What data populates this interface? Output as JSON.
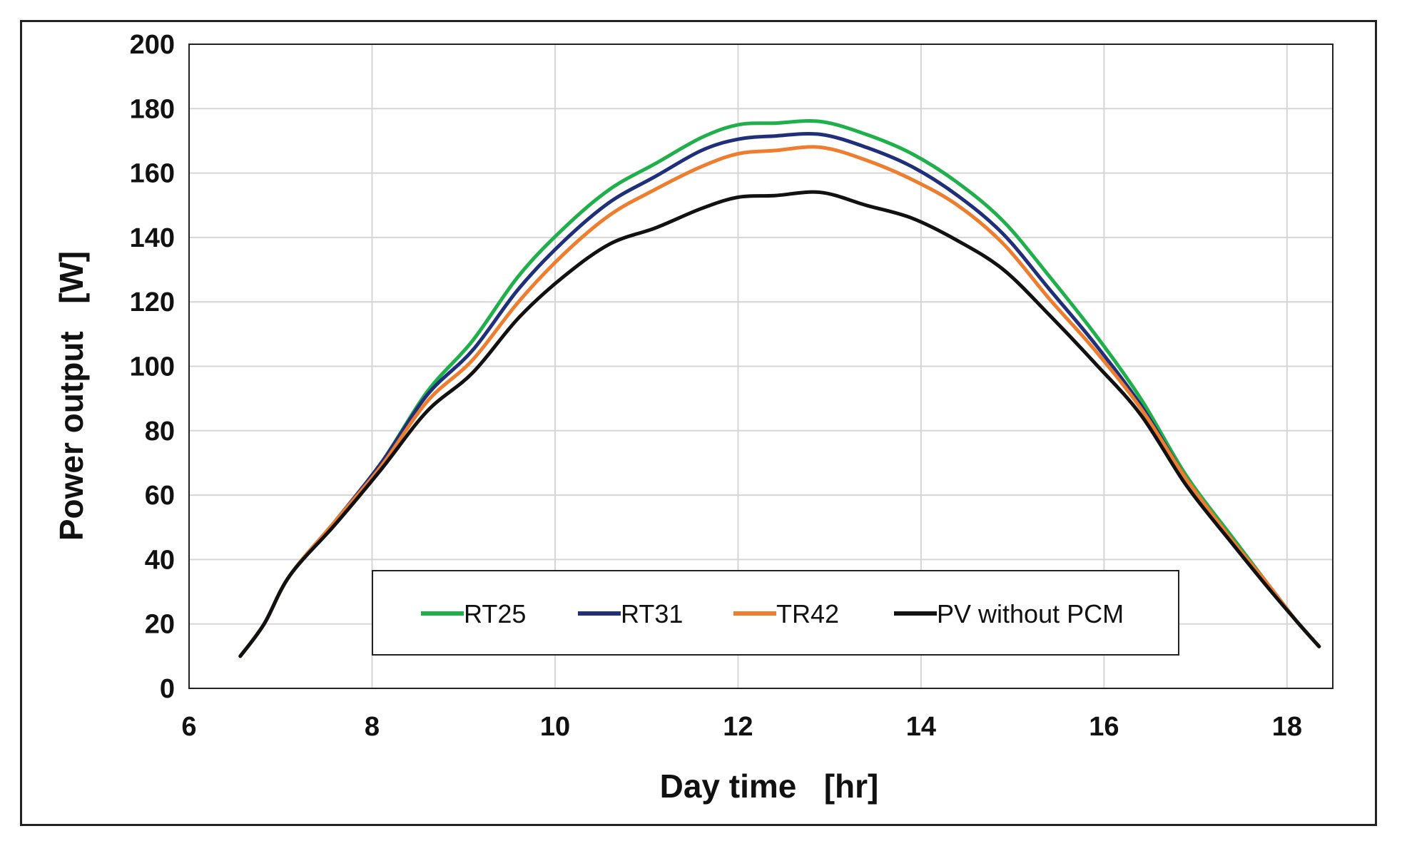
{
  "chart_data": {
    "type": "line",
    "title": "",
    "xlabel": "Day time   [hr]",
    "ylabel": "Power output   [W]",
    "xlim": [
      6,
      18.5
    ],
    "ylim": [
      0,
      200
    ],
    "xticks": [
      6,
      8,
      10,
      12,
      14,
      16,
      18
    ],
    "yticks": [
      0,
      20,
      40,
      60,
      80,
      100,
      120,
      140,
      160,
      180,
      200
    ],
    "grid": true,
    "legend_position": "bottom-center",
    "x": [
      6.56,
      6.82,
      7.1,
      7.6,
      8.1,
      8.6,
      9.1,
      9.6,
      10.1,
      10.6,
      11.1,
      11.6,
      12.0,
      12.4,
      12.9,
      13.4,
      13.9,
      14.4,
      14.9,
      15.4,
      15.9,
      16.4,
      16.9,
      17.4,
      17.8,
      18.1,
      18.35
    ],
    "series": [
      {
        "name": "RT25",
        "color": "#1fb04b",
        "values": [
          10,
          20,
          35,
          52,
          70,
          92,
          108,
          128,
          143,
          155,
          163,
          171,
          175,
          175.5,
          176,
          172,
          166,
          157,
          145,
          128,
          110,
          90,
          66,
          47,
          32,
          21,
          13
        ]
      },
      {
        "name": "RT31",
        "color": "#1f2f7a",
        "values": [
          10,
          20,
          35,
          52,
          70,
          91,
          105,
          124,
          139,
          151,
          159,
          167,
          170.5,
          171.5,
          172,
          168,
          162,
          153,
          141,
          124,
          107,
          88,
          65,
          46,
          32,
          21,
          13
        ]
      },
      {
        "name": "TR42",
        "color": "#ef7d2e",
        "values": [
          10,
          20,
          35,
          52,
          69,
          89,
          102,
          120,
          135,
          147,
          155,
          162,
          166,
          167,
          168,
          164,
          158,
          150,
          138,
          121,
          105,
          87,
          65,
          46,
          32,
          21,
          13
        ]
      },
      {
        "name": "PV without PCM",
        "color": "#111111",
        "values": [
          10,
          20,
          35,
          51,
          68,
          86,
          98,
          115,
          128,
          138,
          143,
          149,
          152.5,
          153,
          154,
          150,
          146,
          139,
          130,
          116,
          101,
          85,
          63,
          45,
          31,
          21,
          13
        ]
      }
    ]
  }
}
